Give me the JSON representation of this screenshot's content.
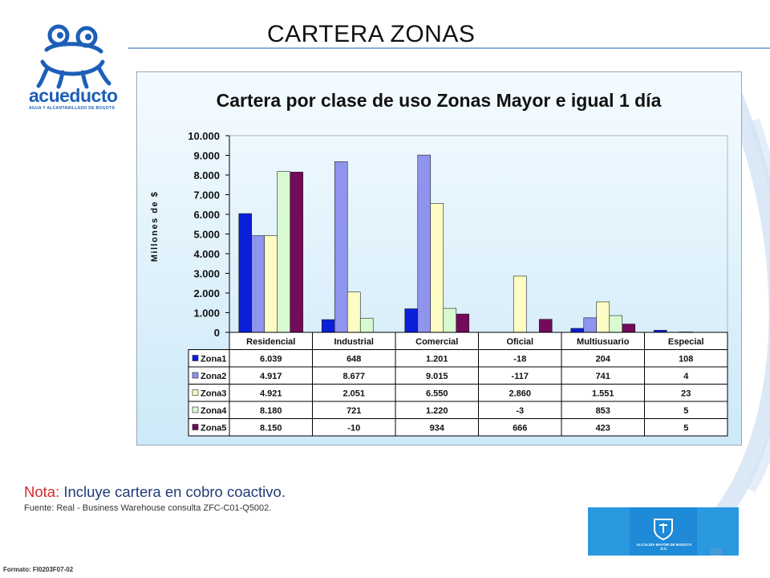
{
  "slide": {
    "title": "CARTERA ZONAS",
    "logo_word": "acueducto",
    "logo_tagline": "AGUA Y ALCANTARILLADO DE BOGOTÁ",
    "note_prefix": "Nota:",
    "note_text": " Incluye cartera en cobro coactivo.",
    "source": "Fuente: Real - Business Warehouse consulta ZFC-C01-Q5002.",
    "footer": "Formato: FI0203F07-02",
    "page_number": "69",
    "gov_label": "ALCALDÍA MAYOR DE BOGOTÁ D.C."
  },
  "chart_data": {
    "type": "bar",
    "title": "Cartera por clase de uso Zonas Mayor e igual 1 día",
    "ylabel": "Millones de $",
    "xlabel": "",
    "ylim": [
      0,
      10000
    ],
    "yticks": [
      "0",
      "1.000",
      "2.000",
      "3.000",
      "4.000",
      "5.000",
      "6.000",
      "7.000",
      "8.000",
      "9.000",
      "10.000"
    ],
    "categories": [
      "Residencial",
      "Industrial",
      "Comercial",
      "Oficial",
      "Multiusuario",
      "Especial"
    ],
    "grid": false,
    "legend": "data-table-left",
    "series": [
      {
        "name": "Zona1",
        "color": "#0a1fd8",
        "values": [
          6039,
          648,
          1201,
          -18,
          204,
          108
        ],
        "labels": [
          "6.039",
          "648",
          "1.201",
          "-18",
          "204",
          "108"
        ]
      },
      {
        "name": "Zona2",
        "color": "#8f94ef",
        "values": [
          4917,
          8677,
          9015,
          -117,
          741,
          4
        ],
        "labels": [
          "4.917",
          "8.677",
          "9.015",
          "-117",
          "741",
          "4"
        ]
      },
      {
        "name": "Zona3",
        "color": "#fcfcc4",
        "values": [
          4921,
          2051,
          6550,
          2860,
          1551,
          23
        ],
        "labels": [
          "4.921",
          "2.051",
          "6.550",
          "2.860",
          "1.551",
          "23"
        ]
      },
      {
        "name": "Zona4",
        "color": "#d8fad0",
        "values": [
          8180,
          721,
          1220,
          -3,
          853,
          5
        ],
        "labels": [
          "8.180",
          "721",
          "1.220",
          "-3",
          "853",
          "5"
        ]
      },
      {
        "name": "Zona5",
        "color": "#730a5a",
        "values": [
          8150,
          -10,
          934,
          666,
          423,
          5
        ],
        "labels": [
          "8.150",
          "-10",
          "934",
          "666",
          "423",
          "5"
        ]
      }
    ]
  }
}
